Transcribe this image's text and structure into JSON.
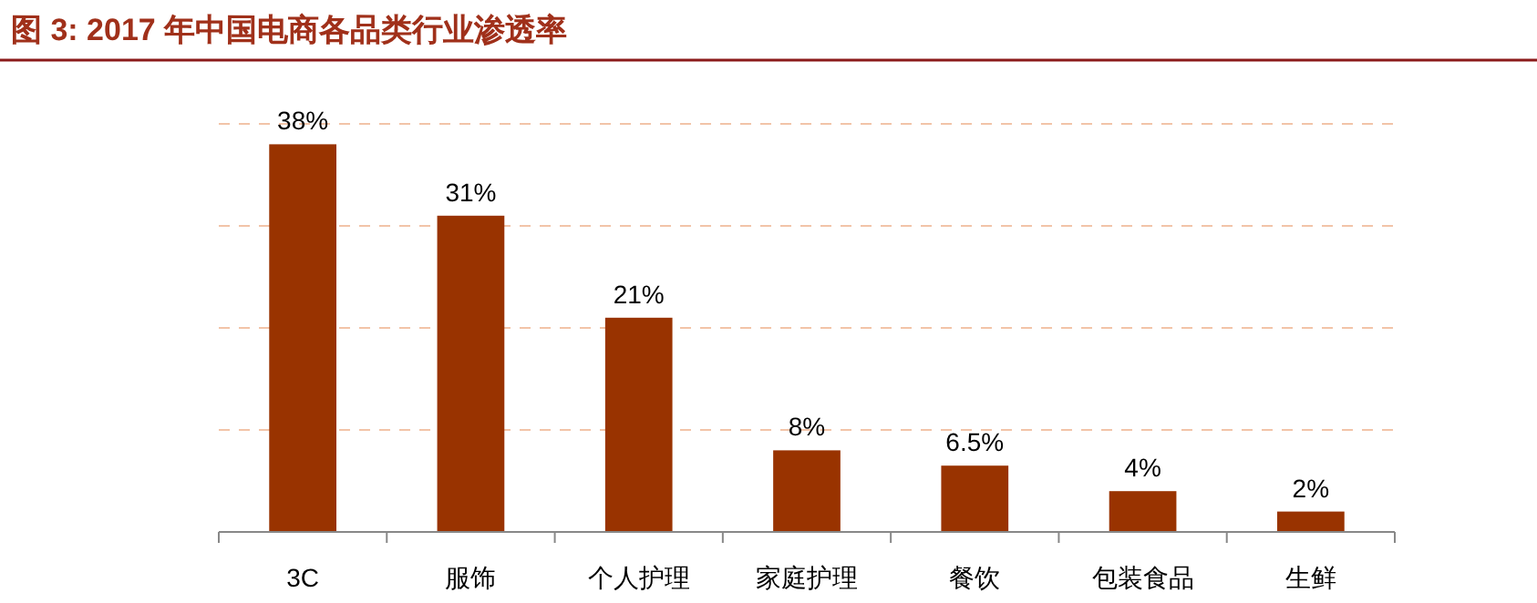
{
  "chart_data": {
    "type": "bar",
    "title": "图 3: 2017 年中国电商各品类行业渗透率",
    "categories": [
      "3C",
      "服饰",
      "个人护理",
      "家庭护理",
      "餐饮",
      "包装食品",
      "生鲜"
    ],
    "values": [
      38,
      31,
      21,
      8,
      6.5,
      4,
      2
    ],
    "value_labels": [
      "38%",
      "31%",
      "21%",
      "8%",
      "6.5%",
      "4%",
      "2%"
    ],
    "color": "#993300",
    "ylim": [
      0,
      40
    ],
    "yticks": [
      {
        "value": 10,
        "label": null
      },
      {
        "value": 20,
        "label": null
      },
      {
        "value": 30,
        "label": null
      },
      {
        "value": 40,
        "label": null
      }
    ],
    "grid": "y",
    "tick_labels": "x"
  }
}
